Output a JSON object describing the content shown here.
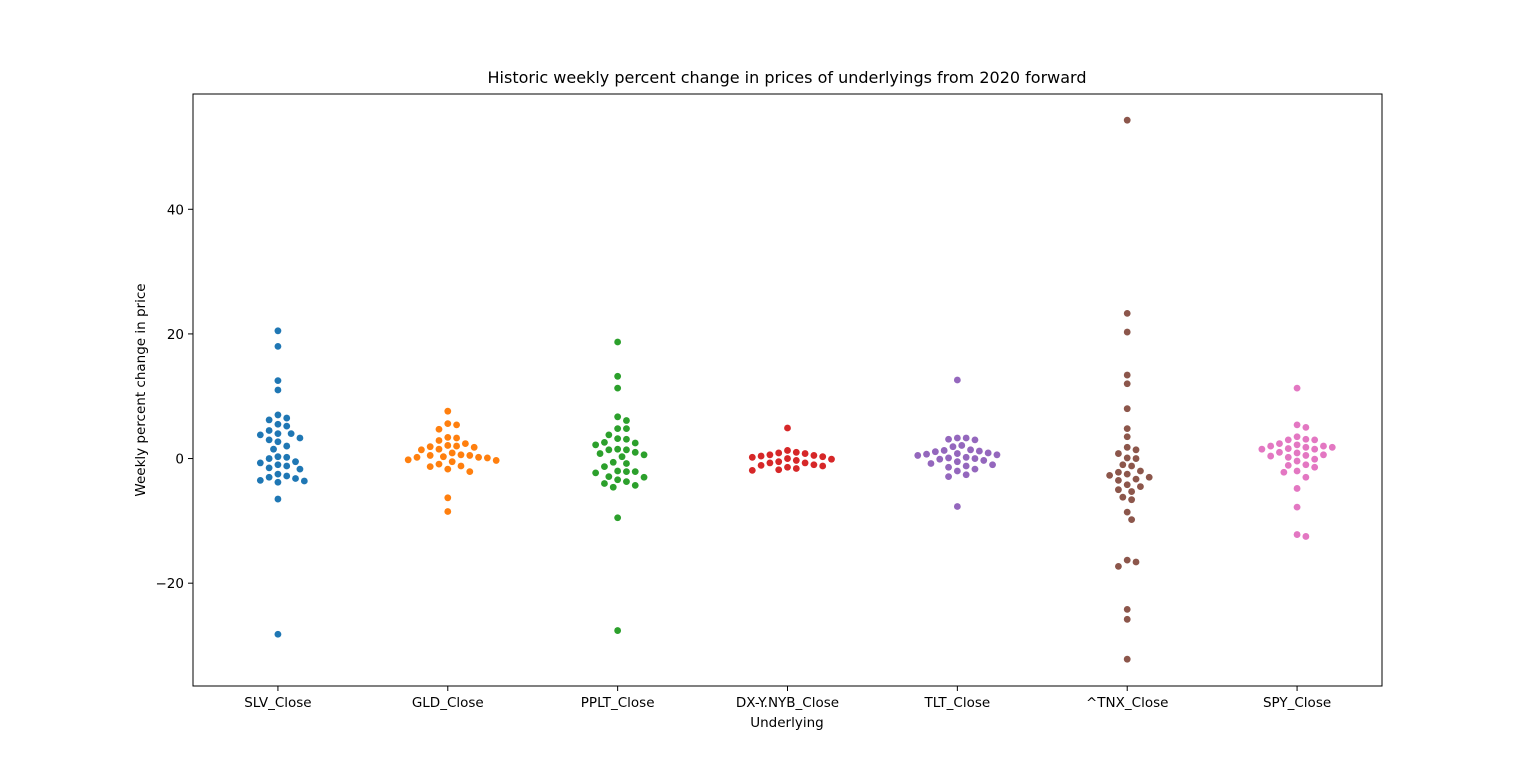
{
  "chart_data": {
    "type": "scatter",
    "subtype": "swarm",
    "title": "Historic weekly percent change in prices of underlyings from 2020 forward",
    "xlabel": "Underlying",
    "ylabel": "Weekly percent change in price",
    "ylim": [
      -36.5,
      58.5
    ],
    "yticks": [
      -20,
      0,
      20,
      40
    ],
    "grid": false,
    "categories": [
      "SLV_Close",
      "GLD_Close",
      "PPLT_Close",
      "DX-Y.NYB_Close",
      "TLT_Close",
      "^TNX_Close",
      "SPY_Close"
    ],
    "series": [
      {
        "category": "SLV_Close",
        "color": "#1f77b4",
        "values": [
          20.5,
          18.0,
          12.5,
          11.0,
          7.0,
          6.5,
          6.2,
          5.5,
          5.2,
          4.5,
          4.0,
          4.0,
          3.8,
          3.3,
          3.0,
          2.7,
          2.0,
          1.5,
          0.3,
          0.2,
          0.0,
          -0.5,
          -0.7,
          -1.0,
          -1.2,
          -1.5,
          -1.7,
          -2.5,
          -2.8,
          -3.0,
          -3.2,
          -3.5,
          -3.6,
          -3.8,
          -6.5,
          -28.2
        ]
      },
      {
        "category": "GLD_Close",
        "color": "#ff7f0e",
        "values": [
          7.6,
          5.6,
          5.4,
          4.7,
          3.4,
          3.3,
          2.9,
          2.4,
          2.1,
          2.0,
          1.9,
          1.8,
          1.5,
          1.4,
          0.9,
          0.6,
          0.5,
          0.5,
          0.3,
          0.2,
          0.2,
          0.1,
          -0.2,
          -0.3,
          -0.5,
          -0.9,
          -1.2,
          -1.3,
          -1.7,
          -2.1,
          -6.3,
          -8.5
        ]
      },
      {
        "category": "PPLT_Close",
        "color": "#2ca02c",
        "values": [
          18.7,
          13.2,
          11.3,
          6.7,
          6.1,
          4.8,
          4.8,
          3.8,
          3.2,
          3.1,
          2.6,
          2.5,
          2.2,
          1.5,
          1.4,
          1.4,
          1.0,
          0.8,
          0.6,
          0.3,
          -0.6,
          -0.8,
          -1.3,
          -2.0,
          -2.1,
          -2.1,
          -2.3,
          -2.9,
          -3.0,
          -3.4,
          -3.7,
          -4.0,
          -4.3,
          -4.6,
          -9.5,
          -27.6
        ]
      },
      {
        "category": "DX-Y.NYB_Close",
        "color": "#d62728",
        "values": [
          4.9,
          1.3,
          1.0,
          0.9,
          0.8,
          0.6,
          0.5,
          0.4,
          0.3,
          0.2,
          0.0,
          -0.1,
          -0.3,
          -0.5,
          -0.7,
          -0.7,
          -1.0,
          -1.1,
          -1.2,
          -1.4,
          -1.6,
          -1.8,
          -1.9
        ]
      },
      {
        "category": "TLT_Close",
        "color": "#9467bd",
        "values": [
          12.6,
          3.3,
          3.3,
          3.1,
          3.0,
          2.1,
          1.9,
          1.4,
          1.3,
          1.2,
          1.1,
          0.9,
          0.8,
          0.7,
          0.6,
          0.5,
          0.2,
          0.1,
          0.0,
          -0.1,
          -0.3,
          -0.5,
          -0.8,
          -1.0,
          -1.2,
          -1.4,
          -1.7,
          -2.0,
          -2.6,
          -2.9,
          -7.7
        ]
      },
      {
        "category": "^TNX_Close",
        "color": "#8c564b",
        "values": [
          54.3,
          23.3,
          20.3,
          13.4,
          12.0,
          8.0,
          4.8,
          3.5,
          1.8,
          1.4,
          0.8,
          0.1,
          0.0,
          -1.0,
          -1.2,
          -2.0,
          -2.2,
          -2.5,
          -2.7,
          -3.0,
          -3.3,
          -3.5,
          -4.2,
          -4.5,
          -5.0,
          -5.3,
          -6.2,
          -6.6,
          -8.6,
          -9.8,
          -16.3,
          -16.6,
          -17.3,
          -24.2,
          -25.8,
          -32.2
        ]
      },
      {
        "category": "SPY_Close",
        "color": "#e377c2",
        "values": [
          11.3,
          5.4,
          5.0,
          3.5,
          3.1,
          3.0,
          3.0,
          2.4,
          2.2,
          2.0,
          2.0,
          1.8,
          1.8,
          1.6,
          1.5,
          1.5,
          1.0,
          0.9,
          0.6,
          0.5,
          0.4,
          0.2,
          -0.1,
          -0.4,
          -1.0,
          -1.1,
          -1.4,
          -2.0,
          -2.2,
          -3.0,
          -4.8,
          -7.8,
          -12.2,
          -12.5
        ]
      }
    ]
  }
}
